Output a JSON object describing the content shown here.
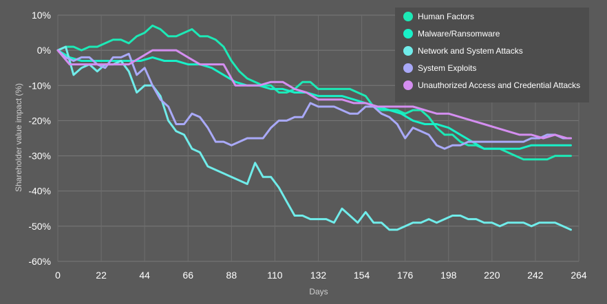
{
  "chart_data": {
    "type": "line",
    "xlabel": "Days",
    "ylabel": "Shareholder value impact (%)",
    "x_ticks": [
      0,
      22,
      44,
      66,
      88,
      110,
      132,
      154,
      176,
      198,
      220,
      242,
      264
    ],
    "y_ticks": [
      10,
      0,
      -10,
      -20,
      -30,
      -40,
      -50,
      -60
    ],
    "y_tick_labels": [
      "10%",
      "0%",
      "-10%",
      "-20%",
      "-30%",
      "-40%",
      "-50%",
      "-60%"
    ],
    "xlim": [
      0,
      264
    ],
    "ylim": [
      -60,
      10
    ],
    "grid": true,
    "legend_position": "top-right",
    "series": [
      {
        "name": "Human Factors",
        "color": "#1de9b6",
        "x": [
          0,
          4,
          8,
          12,
          16,
          20,
          24,
          28,
          32,
          36,
          40,
          44,
          48,
          52,
          56,
          60,
          64,
          68,
          72,
          76,
          80,
          84,
          88,
          92,
          96,
          100,
          104,
          108,
          112,
          116,
          120,
          124,
          128,
          132,
          136,
          140,
          144,
          148,
          152,
          156,
          160,
          164,
          168,
          172,
          176,
          180,
          184,
          188,
          192,
          196,
          200,
          204,
          208,
          212,
          216,
          220,
          224,
          228,
          232,
          236,
          240,
          244,
          248,
          252,
          256,
          260
        ],
        "values": [
          0,
          1,
          1,
          0,
          1,
          1,
          2,
          3,
          3,
          2,
          4,
          5,
          7,
          6,
          4,
          4,
          5,
          6,
          4,
          4,
          3,
          1,
          -3,
          -6,
          -8,
          -9,
          -10,
          -10,
          -12,
          -12,
          -11,
          -9,
          -9,
          -11,
          -11,
          -11,
          -11,
          -11,
          -12,
          -13,
          -16,
          -17,
          -17,
          -17,
          -18,
          -17,
          -17,
          -19,
          -22,
          -24,
          -24,
          -26,
          -27,
          -27,
          -28,
          -28,
          -28,
          -29,
          -30,
          -31,
          -31,
          -31,
          -31,
          -30,
          -30,
          -30
        ]
      },
      {
        "name": "Malware/Ransomware",
        "color": "#19f0c8",
        "x": [
          0,
          6,
          12,
          18,
          24,
          30,
          36,
          42,
          48,
          54,
          60,
          66,
          72,
          78,
          84,
          90,
          96,
          102,
          108,
          114,
          120,
          126,
          132,
          138,
          144,
          150,
          156,
          162,
          168,
          174,
          180,
          186,
          192,
          198,
          204,
          210,
          216,
          222,
          228,
          234,
          240,
          246,
          252,
          258,
          260
        ],
        "values": [
          0,
          -2,
          -3,
          -3,
          -3,
          -3,
          -3,
          -3,
          -2,
          -3,
          -3,
          -4,
          -4,
          -5,
          -7,
          -9,
          -10,
          -10,
          -11,
          -11,
          -12,
          -12,
          -13,
          -13,
          -13,
          -14,
          -15,
          -16,
          -17,
          -18,
          -20,
          -21,
          -21,
          -22,
          -24,
          -26,
          -28,
          -28,
          -28,
          -28,
          -27,
          -27,
          -27,
          -27,
          -27
        ]
      },
      {
        "name": "Network and System Attacks",
        "color": "#70ecea",
        "x": [
          0,
          4,
          8,
          12,
          16,
          20,
          24,
          28,
          32,
          36,
          40,
          44,
          48,
          52,
          56,
          60,
          64,
          68,
          72,
          76,
          80,
          84,
          88,
          92,
          96,
          100,
          104,
          108,
          112,
          116,
          120,
          124,
          128,
          132,
          136,
          140,
          144,
          148,
          152,
          156,
          160,
          164,
          168,
          172,
          176,
          180,
          184,
          188,
          192,
          196,
          200,
          204,
          208,
          212,
          216,
          220,
          224,
          228,
          232,
          236,
          240,
          244,
          248,
          252,
          256,
          260
        ],
        "values": [
          0,
          1,
          -7,
          -5,
          -4,
          -6,
          -4,
          -4,
          -3,
          -6,
          -12,
          -10,
          -10,
          -13,
          -20,
          -23,
          -24,
          -28,
          -29,
          -33,
          -34,
          -35,
          -36,
          -37,
          -38,
          -32,
          -36,
          -36,
          -39,
          -43,
          -47,
          -47,
          -48,
          -48,
          -48,
          -49,
          -45,
          -47,
          -49,
          -46,
          -49,
          -49,
          -51,
          -51,
          -50,
          -49,
          -49,
          -48,
          -49,
          -48,
          -47,
          -47,
          -48,
          -48,
          -49,
          -49,
          -50,
          -49,
          -49,
          -49,
          -50,
          -49,
          -49,
          -49,
          -50,
          -51
        ]
      },
      {
        "name": "System Exploits",
        "color": "#a9a9f8",
        "x": [
          0,
          4,
          8,
          12,
          16,
          20,
          24,
          28,
          32,
          36,
          40,
          44,
          48,
          52,
          56,
          60,
          64,
          68,
          72,
          76,
          80,
          84,
          88,
          92,
          96,
          100,
          104,
          108,
          112,
          116,
          120,
          124,
          128,
          132,
          136,
          140,
          144,
          148,
          152,
          156,
          160,
          164,
          168,
          172,
          176,
          180,
          184,
          188,
          192,
          196,
          200,
          204,
          208,
          212,
          216,
          220,
          224,
          228,
          232,
          236,
          240,
          244,
          248,
          252,
          256,
          260
        ],
        "values": [
          0,
          -2,
          -3,
          -2,
          -2,
          -4,
          -5,
          -2,
          -2,
          -1,
          -7,
          -5,
          -10,
          -14,
          -16,
          -21,
          -21,
          -18,
          -19,
          -22,
          -26,
          -26,
          -27,
          -26,
          -25,
          -25,
          -25,
          -22,
          -20,
          -20,
          -19,
          -19,
          -15,
          -16,
          -16,
          -16,
          -17,
          -18,
          -18,
          -16,
          -16,
          -18,
          -19,
          -21,
          -25,
          -22,
          -23,
          -24,
          -27,
          -28,
          -27,
          -27,
          -26,
          -26,
          -26,
          -26,
          -26,
          -26,
          -26,
          -26,
          -25,
          -25,
          -24,
          -24,
          -25,
          -25
        ]
      },
      {
        "name": "Unauthorized Access and Credential Attacks",
        "color": "#d48ef0",
        "x": [
          0,
          6,
          12,
          18,
          24,
          30,
          36,
          42,
          48,
          54,
          60,
          66,
          72,
          78,
          84,
          90,
          96,
          102,
          108,
          114,
          120,
          126,
          132,
          138,
          144,
          150,
          156,
          162,
          168,
          174,
          180,
          186,
          192,
          198,
          204,
          210,
          216,
          222,
          228,
          234,
          240,
          246,
          252,
          258,
          260
        ],
        "values": [
          0,
          -4,
          -4,
          -4,
          -4,
          -4,
          -4,
          -2,
          0,
          0,
          0,
          -2,
          -4,
          -4,
          -4,
          -10,
          -10,
          -10,
          -9,
          -9,
          -11,
          -12,
          -14,
          -14,
          -14,
          -15,
          -15,
          -16,
          -16,
          -16,
          -16,
          -17,
          -18,
          -18,
          -19,
          -20,
          -21,
          -22,
          -23,
          -24,
          -24,
          -25,
          -24,
          -25,
          -25
        ]
      }
    ]
  }
}
